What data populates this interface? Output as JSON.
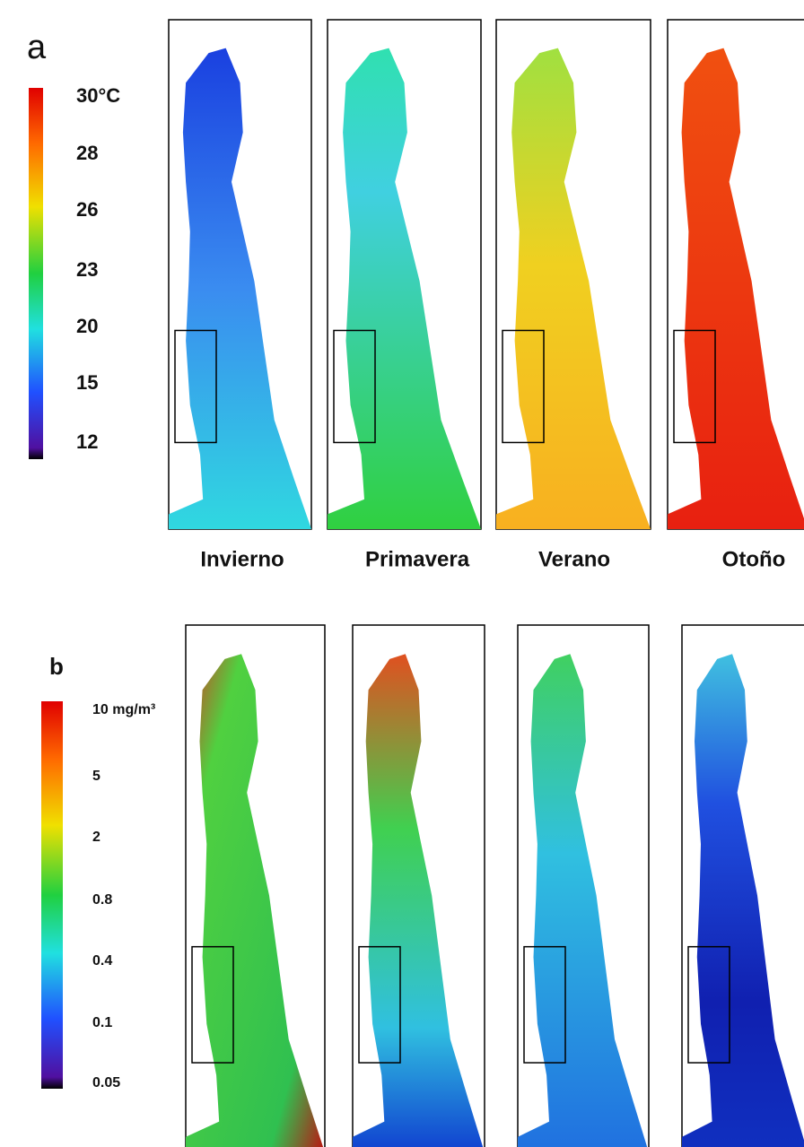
{
  "panels": [
    {
      "label": "a",
      "colorbar_labels": [
        "30°C",
        "28",
        "26",
        "23",
        "20",
        "15",
        "12"
      ],
      "columns": [
        "Invierno",
        "Primavera",
        "Verano",
        "Otoño"
      ]
    },
    {
      "label": "b",
      "colorbar_labels": [
        "10 mg/m³",
        "5",
        "2",
        "0.8",
        "0.4",
        "0.1",
        "0.05"
      ]
    }
  ]
}
